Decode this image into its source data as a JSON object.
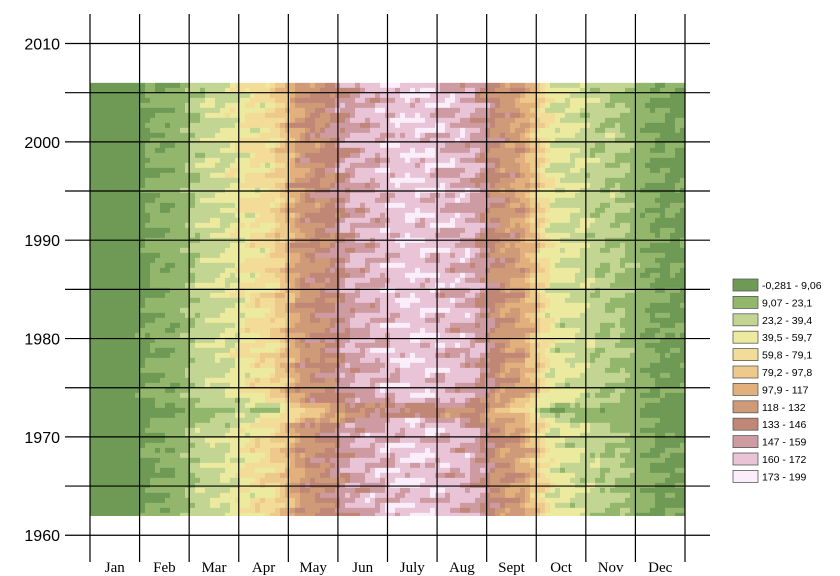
{
  "chart_data": {
    "type": "heatmap",
    "title": "",
    "xlabel": "",
    "ylabel": "",
    "x_ticks": [
      "Jan",
      "Feb",
      "Mar",
      "Apr",
      "May",
      "Jun",
      "July",
      "Aug",
      "Sept",
      "Oct",
      "Nov",
      "Dec"
    ],
    "y_ticks": [
      "2010",
      "2000",
      "1990",
      "1980",
      "1970",
      "1960"
    ],
    "y_tick_values": [
      2010,
      2000,
      1990,
      1980,
      1970,
      1960
    ],
    "ylim": [
      1958.5,
      2013
    ],
    "data_year_range": [
      1962,
      2006
    ],
    "grid": true,
    "legend_position": "right",
    "legend": [
      {
        "label": "-0,281 - 9,06",
        "color": "#6e9a55"
      },
      {
        "label": "9,07 - 23,1",
        "color": "#93b66d"
      },
      {
        "label": "23,2 - 39,4",
        "color": "#c2d592"
      },
      {
        "label": "39,5 - 59,7",
        "color": "#ecea9e"
      },
      {
        "label": "59,8 - 79,1",
        "color": "#f2dc98"
      },
      {
        "label": "79,2 - 97,8",
        "color": "#eec98c"
      },
      {
        "label": "97,9 - 117",
        "color": "#e2b07c"
      },
      {
        "label": "118 - 132",
        "color": "#cf9a78"
      },
      {
        "label": "133 - 146",
        "color": "#c08676"
      },
      {
        "label": "147 - 159",
        "color": "#cf9ba3"
      },
      {
        "label": "160 - 172",
        "color": "#e9c3d6"
      },
      {
        "label": "173 - 199",
        "color": "#faeefb"
      }
    ],
    "monthly_profile_class": [
      0,
      0.6,
      2.3,
      3.8,
      7.5,
      9.5,
      10.3,
      9.7,
      7,
      2.6,
      1.7,
      0.4
    ]
  }
}
